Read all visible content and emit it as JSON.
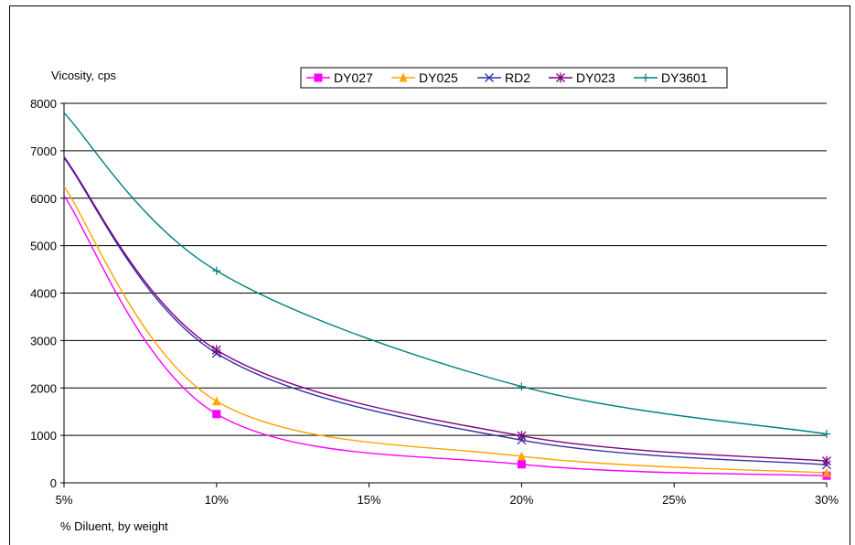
{
  "chart_data": {
    "type": "line",
    "title": "",
    "ylabel": "Vicosity, cps",
    "xlabel": "% Diluent, by weight",
    "x": [
      5,
      10,
      20,
      30
    ],
    "xticks": [
      "5%",
      "10%",
      "15%",
      "20%",
      "25%",
      "30%"
    ],
    "xtick_values": [
      5,
      10,
      15,
      20,
      25,
      30
    ],
    "xlim": [
      5,
      30
    ],
    "ylim": [
      0,
      8000
    ],
    "yticks": [
      0,
      1000,
      2000,
      3000,
      4000,
      5000,
      6000,
      7000,
      8000
    ],
    "grid": true,
    "legend_position": "top",
    "series": [
      {
        "name": "DY027",
        "color": "#ff00ff",
        "marker": "square",
        "values": [
          6050,
          1450,
          390,
          150
        ]
      },
      {
        "name": "DY025",
        "color": "#ffa500",
        "marker": "triangle",
        "values": [
          6250,
          1720,
          560,
          210
        ]
      },
      {
        "name": "RD2",
        "color": "#3333aa",
        "marker": "x",
        "values": [
          6850,
          2730,
          900,
          380
        ]
      },
      {
        "name": "DY023",
        "color": "#800080",
        "marker": "asterisk",
        "values": [
          6870,
          2800,
          990,
          460
        ]
      },
      {
        "name": "DY3601",
        "color": "#008080",
        "marker": "plus",
        "values": [
          7800,
          4470,
          2030,
          1030
        ]
      }
    ]
  }
}
